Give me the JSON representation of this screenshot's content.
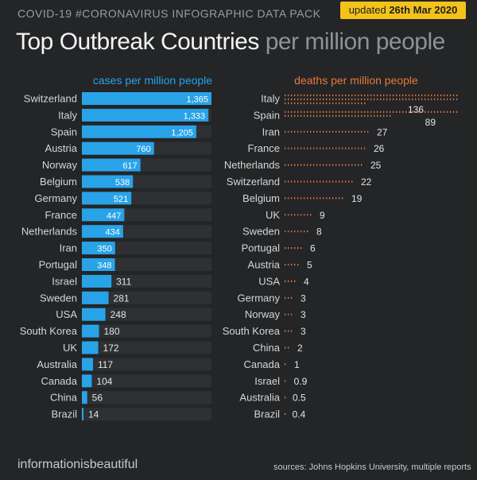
{
  "header": {
    "kicker": "COVID-19 #CORONAVIRUS INFOGRAPHIC DATA PACK",
    "updated_prefix": "updated",
    "updated_date": "26th Mar 2020",
    "title_main": "Top Outbreak Countries",
    "title_sub": "per million people"
  },
  "footer": {
    "brand": "informationisbeautiful",
    "sources": "sources: Johns Hopkins University, multiple reports"
  },
  "colors": {
    "background": "#232527",
    "cases": "#29a3e8",
    "deaths": "#e8783a",
    "track": "#2e3033"
  },
  "chart_data": [
    {
      "type": "bar",
      "title": "cases per million people",
      "orientation": "horizontal",
      "categories": [
        "Switzerland",
        "Italy",
        "Spain",
        "Austria",
        "Norway",
        "Belgium",
        "Germany",
        "France",
        "Netherlands",
        "Iran",
        "Portugal",
        "Israel",
        "Sweden",
        "USA",
        "South Korea",
        "UK",
        "Australia",
        "Canada",
        "China",
        "Brazil"
      ],
      "values": [
        1365,
        1333,
        1205,
        760,
        617,
        538,
        521,
        447,
        434,
        350,
        348,
        311,
        281,
        248,
        180,
        172,
        117,
        104,
        56,
        14
      ],
      "labels": [
        "1,365",
        "1,333",
        "1,205",
        "760",
        "617",
        "538",
        "521",
        "447",
        "434",
        "350",
        "348",
        "311",
        "281",
        "248",
        "180",
        "172",
        "117",
        "104",
        "56",
        "14"
      ],
      "xlim": [
        0,
        1365
      ],
      "color": "#29a3e8"
    },
    {
      "type": "bar",
      "title": "deaths per million people",
      "orientation": "horizontal",
      "style": "dots",
      "categories": [
        "Italy",
        "Spain",
        "Iran",
        "France",
        "Netherlands",
        "Switzerland",
        "Belgium",
        "UK",
        "Sweden",
        "Portugal",
        "Austria",
        "USA",
        "Germany",
        "Norway",
        "South Korea",
        "China",
        "Canada",
        "Israel",
        "Australia",
        "Brazil"
      ],
      "values": [
        136,
        89,
        27,
        26,
        25,
        22,
        19,
        9,
        8,
        6,
        5,
        4,
        3,
        3,
        3,
        2,
        1,
        0.9,
        0.5,
        0.4
      ],
      "labels": [
        "136",
        "89",
        "27",
        "26",
        "25",
        "22",
        "19",
        "9",
        "8",
        "6",
        "5",
        "4",
        "3",
        "3",
        "3",
        "2",
        "1",
        "0.9",
        "0.5",
        "0.4"
      ],
      "color": "#e8783a"
    }
  ]
}
